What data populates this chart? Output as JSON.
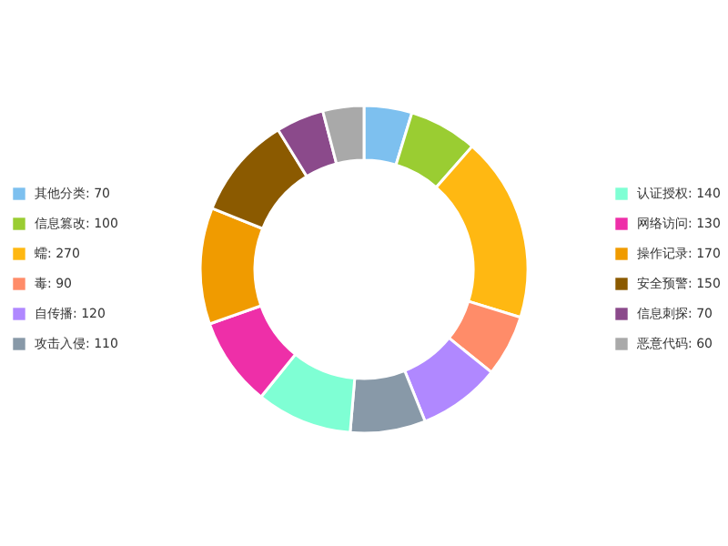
{
  "chart_data": {
    "type": "donut",
    "categories": [
      "其他分类: 70",
      "信息篡改: 100",
      "蠕: 270",
      "毒: 90",
      "自传播: 120",
      "攻击入侵: 110",
      "认证授权: 140",
      "网络访问: 130",
      "操作记录: 170",
      "安全预警: 150",
      "信息刺探: 70",
      "恶意代码: 60"
    ],
    "values": [
      70,
      100,
      270,
      90,
      120,
      110,
      140,
      130,
      170,
      150,
      70,
      60
    ],
    "colors": [
      "#7dc0ef",
      "#9acd32",
      "#ffb812",
      "#ff8c69",
      "#b088ff",
      "#8899a8",
      "#7fffd4",
      "#ee2fa8",
      "#f09b00",
      "#8b5a00",
      "#8b4a8b",
      "#a9a9a9"
    ],
    "legend": "left"
  }
}
